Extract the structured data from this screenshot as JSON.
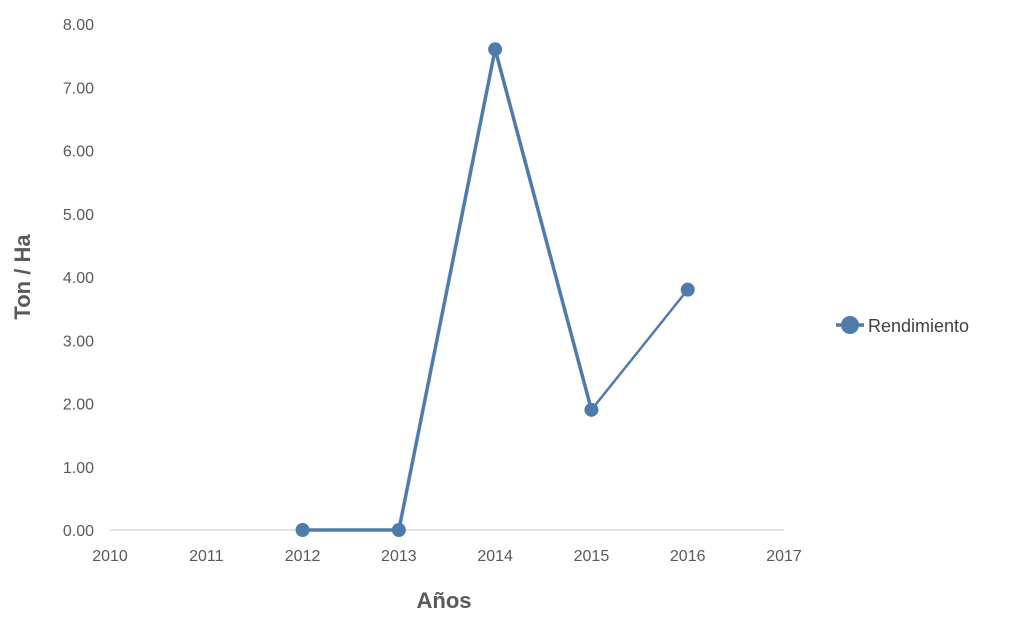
{
  "chart_data": {
    "type": "line",
    "title": "",
    "xlabel": "Años",
    "ylabel": "Ton / Ha",
    "xlim": [
      2010,
      2017
    ],
    "ylim": [
      0,
      8
    ],
    "x_ticks": [
      "2010",
      "2011",
      "2012",
      "2013",
      "2014",
      "2015",
      "2016",
      "2017"
    ],
    "y_ticks": [
      "0.00",
      "1.00",
      "2.00",
      "3.00",
      "4.00",
      "5.00",
      "6.00",
      "7.00",
      "8.00"
    ],
    "grid": false,
    "legend_position": "right",
    "series": [
      {
        "name": "Rendimiento",
        "color": "#4f7bab",
        "x": [
          2012,
          2013,
          2014,
          2015,
          2016
        ],
        "y": [
          0.0,
          0.0,
          7.6,
          1.9,
          3.8
        ]
      }
    ]
  }
}
